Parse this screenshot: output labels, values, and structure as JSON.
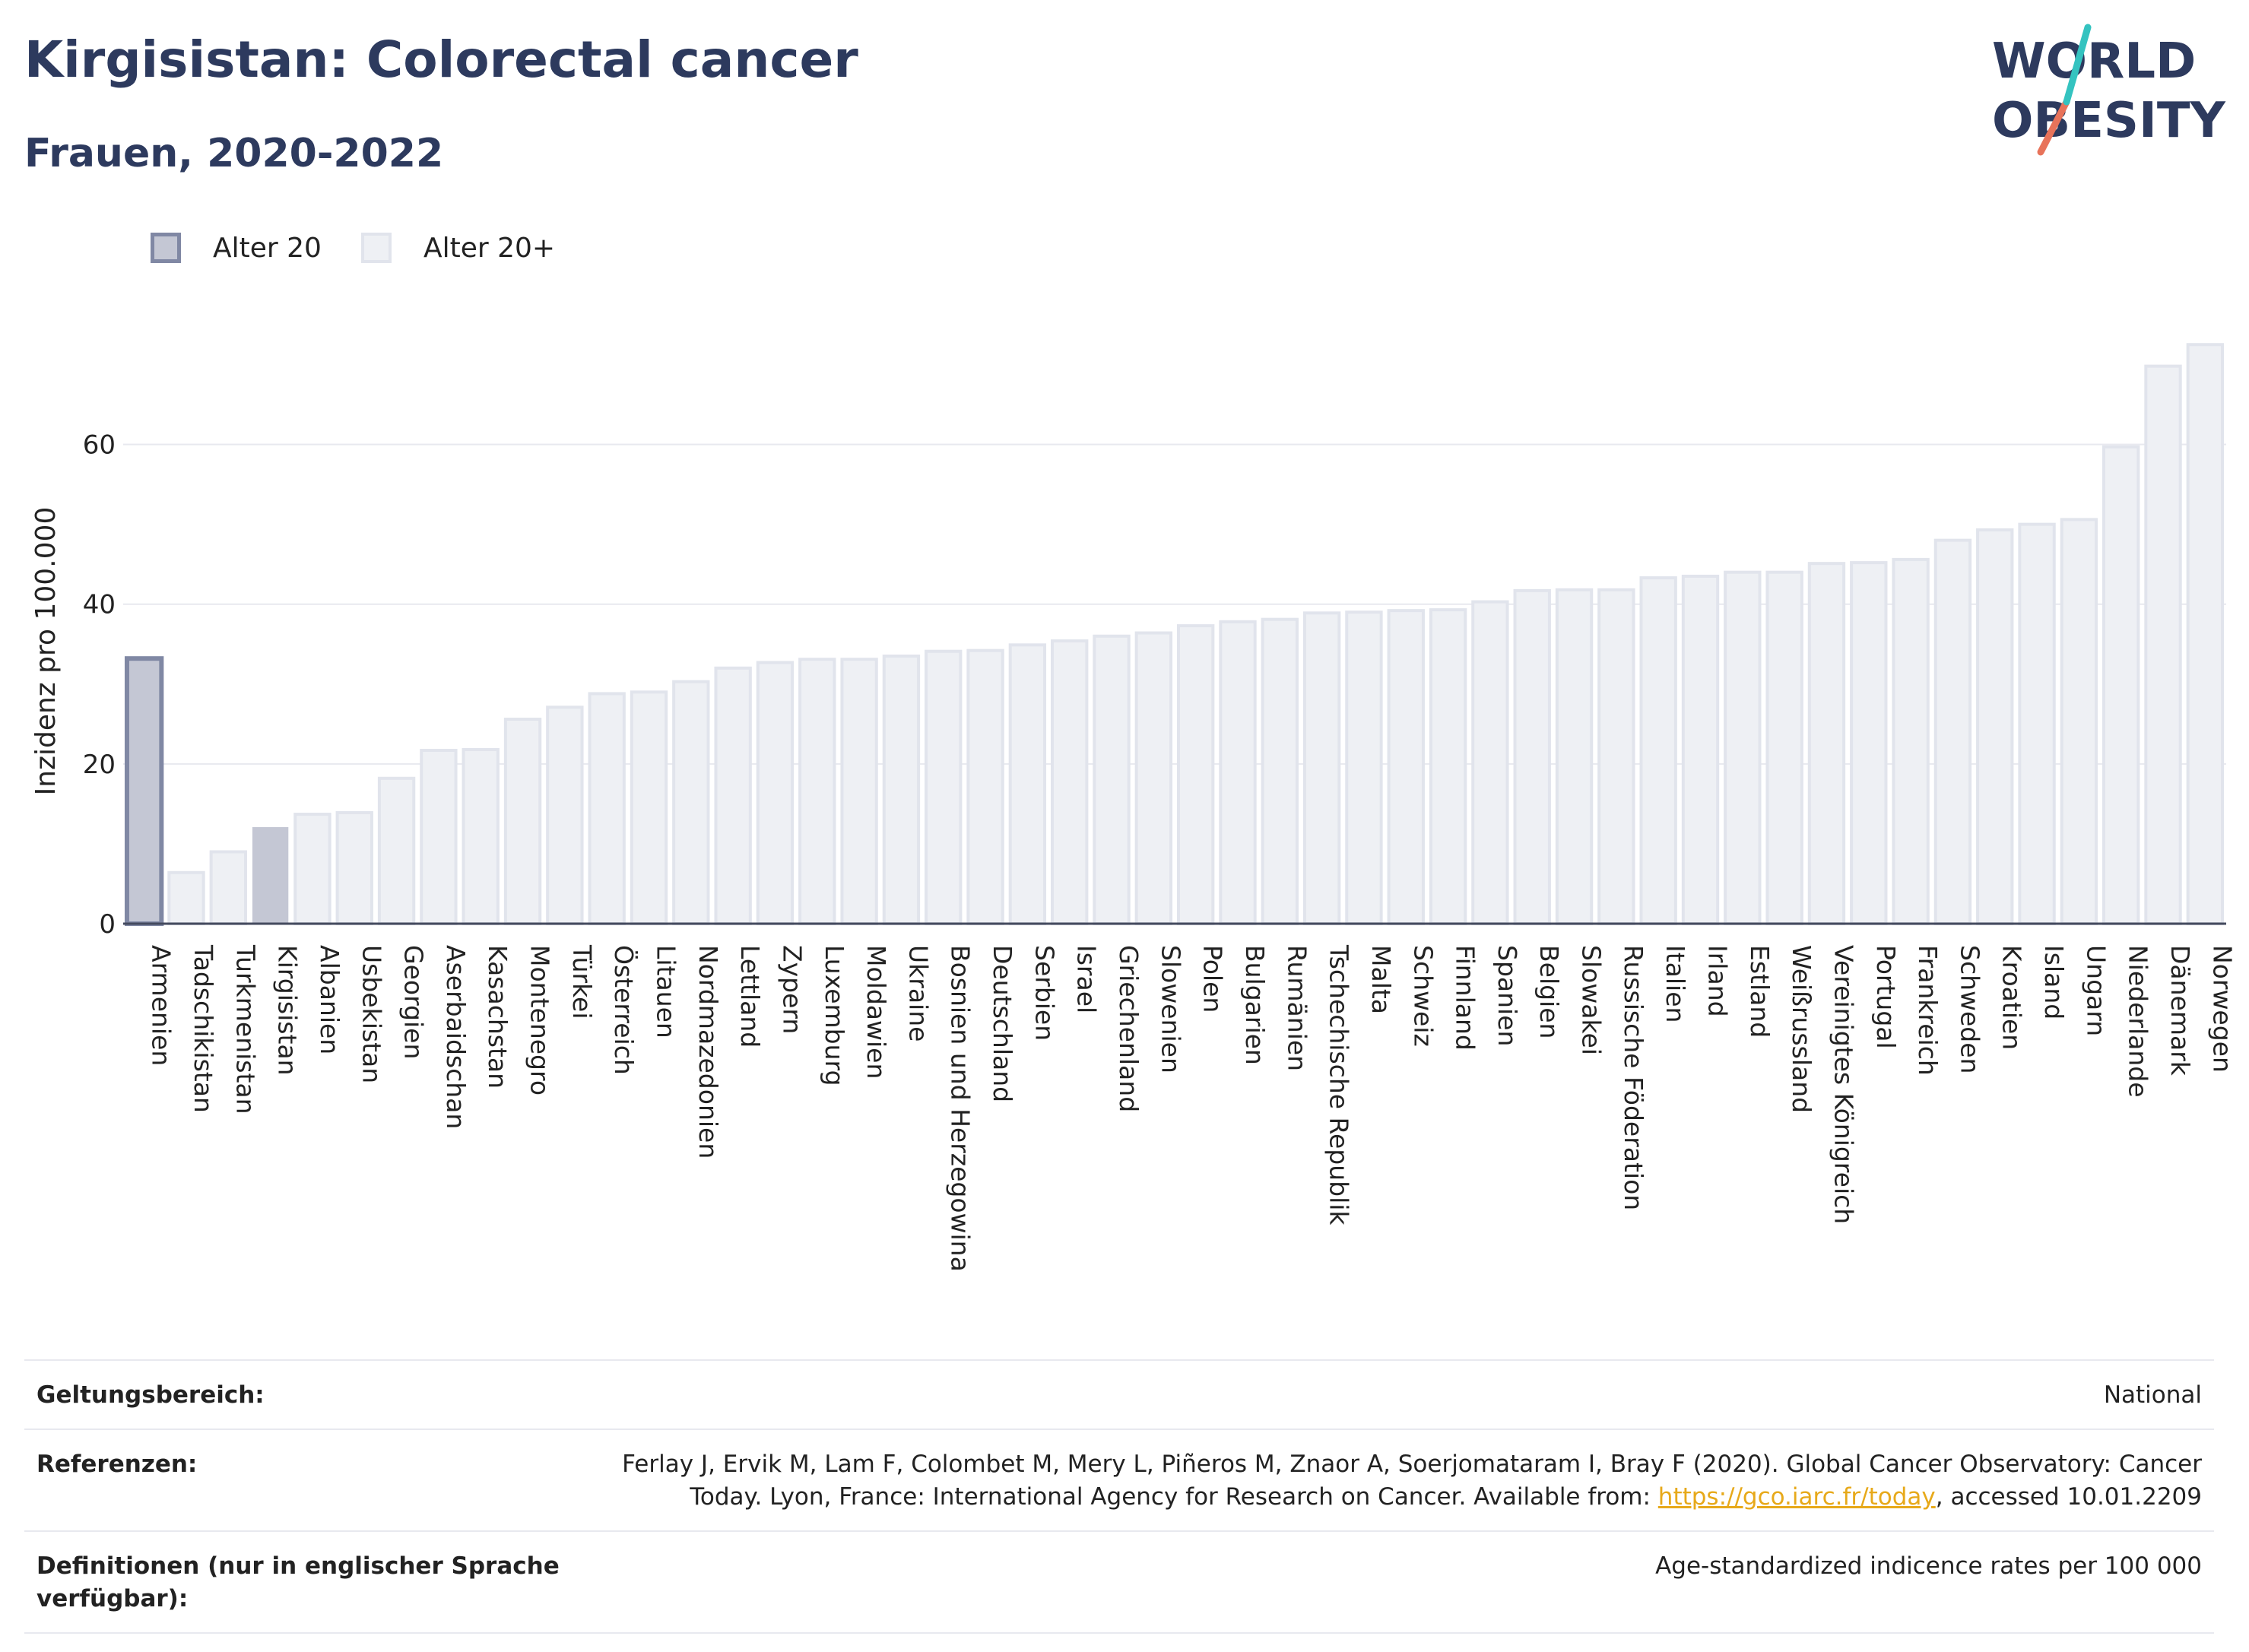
{
  "header": {
    "title": "Kirgisistan: Colorectal cancer",
    "subtitle": "Frauen, 2020-2022"
  },
  "logo": {
    "line1": "WORLD",
    "line2": "OBESITY"
  },
  "legend": [
    {
      "label": "Alter 20",
      "color": "#c4c7d4",
      "border": "#8088a4"
    },
    {
      "label": "Alter 20+",
      "color": "#eef0f4",
      "border": "#e1e4ec"
    }
  ],
  "colors": {
    "highlight_fill": "#c4c7d4",
    "highlight_border": "#8088a4",
    "bar_fill": "#eef0f4",
    "bar_border": "#e1e4ec",
    "title": "#2d3a5e",
    "link": "#e7a91a"
  },
  "chart_data": {
    "type": "bar",
    "ylabel": "Inzidenz pro 100.000",
    "xlabel": "",
    "ylim": [
      0,
      73
    ],
    "yticks": [
      0,
      20,
      40,
      60
    ],
    "grid": true,
    "legend_position": "top-left",
    "categories": [
      "Armenien",
      "Tadschikistan",
      "Turkmenistan",
      "Kirgisistan",
      "Albanien",
      "Usbekistan",
      "Georgien",
      "Aserbaidschan",
      "Kasachstan",
      "Montenegro",
      "Türkei",
      "Österreich",
      "Litauen",
      "Nordmazedonien",
      "Lettland",
      "Zypern",
      "Luxemburg",
      "Moldawien",
      "Ukraine",
      "Bosnien und Herzegowina",
      "Deutschland",
      "Serbien",
      "Israel",
      "Griechenland",
      "Slowenien",
      "Polen",
      "Bulgarien",
      "Rumänien",
      "Tschechische Republik",
      "Malta",
      "Schweiz",
      "Finnland",
      "Spanien",
      "Belgien",
      "Slowakei",
      "Russische Föderation",
      "Italien",
      "Irland",
      "Estland",
      "Weißrussland",
      "Vereinigtes Königreich",
      "Portugal",
      "Frankreich",
      "Schweden",
      "Kroatien",
      "Island",
      "Ungarn",
      "Niederlande",
      "Dänemark",
      "Norwegen"
    ],
    "series": [
      {
        "name": "Alter 20",
        "values": [
          33.2,
          null,
          null,
          null,
          null,
          null,
          null,
          null,
          null,
          null,
          null,
          null,
          null,
          null,
          null,
          null,
          null,
          null,
          null,
          null,
          null,
          null,
          null,
          null,
          null,
          null,
          null,
          null,
          null,
          null,
          null,
          null,
          null,
          null,
          null,
          null,
          null,
          null,
          null,
          null,
          null,
          null,
          null,
          null,
          null,
          null,
          null,
          null,
          null,
          null
        ]
      },
      {
        "name": "Alter 20+",
        "values": [
          null,
          6.4,
          9.0,
          12.0,
          13.7,
          13.9,
          18.2,
          21.7,
          21.8,
          25.6,
          27.1,
          28.8,
          29.0,
          30.3,
          32.0,
          32.7,
          33.1,
          33.1,
          33.5,
          34.1,
          34.2,
          34.9,
          35.4,
          36.0,
          36.4,
          37.3,
          37.8,
          38.1,
          38.9,
          39.0,
          39.2,
          39.3,
          40.3,
          41.7,
          41.8,
          41.8,
          43.3,
          43.5,
          44.0,
          44.0,
          45.1,
          45.2,
          45.6,
          48.0,
          49.3,
          50.0,
          50.6,
          59.7,
          69.8,
          72.5
        ]
      }
    ],
    "highlight_category": "Kirgisistan"
  },
  "meta": {
    "coverage_label": "Geltungsbereich:",
    "coverage_value": "National",
    "references_label": "Referenzen:",
    "references_text_before": "Ferlay J, Ervik M, Lam F, Colombet M, Mery L, Piñeros M, Znaor A, Soerjomataram I, Bray F (2020). Global Cancer Observatory: Cancer Today. Lyon, France: International Agency for Research on Cancer. Available from: ",
    "references_link": "https://gco.iarc.fr/today",
    "references_text_after": ", accessed 10.01.2209",
    "definitions_label": "Definitionen (nur in englischer Sprache verfügbar):",
    "definitions_value": "Age-standardized indicence rates per 100 000"
  }
}
